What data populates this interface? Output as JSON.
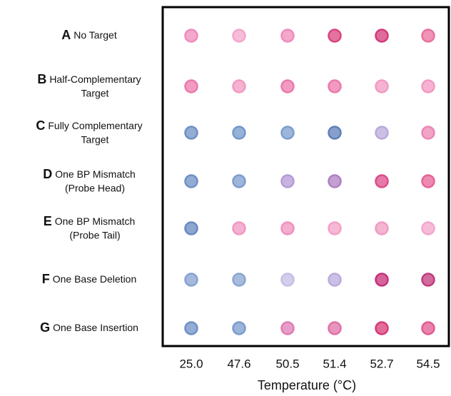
{
  "columns": [
    "25.0",
    "47.6",
    "50.5",
    "51.4",
    "52.7",
    "54.5"
  ],
  "x_label": "Temperature (°C)",
  "rows": [
    {
      "letter": "A",
      "label": [
        "No Target"
      ],
      "colors": [
        "#ef8bbb",
        "#f3a6cb",
        "#ef8bbb",
        "#d9447f",
        "#d43a78",
        "#e9709f"
      ]
    },
    {
      "letter": "B",
      "label": [
        "Half-Complementary",
        "Target"
      ],
      "colors": [
        "#ec7aab",
        "#f19ac2",
        "#ec7aab",
        "#ec7aab",
        "#f19ac2",
        "#f19ac2"
      ]
    },
    {
      "letter": "C",
      "label": [
        "Fully Complementary",
        "Target"
      ],
      "colors": [
        "#6f90c6",
        "#7498ca",
        "#7b9dcd",
        "#5f7fb8",
        "#b9aadb",
        "#ec86b3"
      ]
    },
    {
      "letter": "D",
      "label": [
        "One BP Mismatch",
        "(Probe Head)"
      ],
      "colors": [
        "#6f90c6",
        "#7d9ccd",
        "#b49ad6",
        "#b07fc3",
        "#dc4d8a",
        "#e66398"
      ]
    },
    {
      "letter": "E",
      "label": [
        "One BP Mismatch",
        "(Probe Tail)"
      ],
      "colors": [
        "#6889c2",
        "#f197c1",
        "#f091be",
        "#f3a0c6",
        "#f09cc2",
        "#f3a6ca"
      ]
    },
    {
      "letter": "F",
      "label": [
        "One Base Deletion"
      ],
      "colors": [
        "#86a2d0",
        "#8aa5d1",
        "#c6bde6",
        "#b9abdc",
        "#c6307a",
        "#c13a7c"
      ]
    },
    {
      "letter": "G",
      "label": [
        "One Base Insertion"
      ],
      "colors": [
        "#6f90c6",
        "#7a9bcd",
        "#e07cb4",
        "#e070a6",
        "#d83a78",
        "#e25a93"
      ]
    }
  ]
}
